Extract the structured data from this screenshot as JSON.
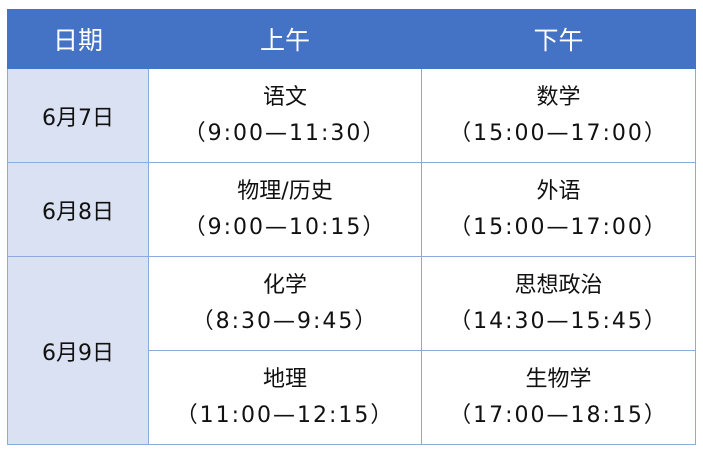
{
  "header": {
    "date": "日期",
    "morning": "上午",
    "afternoon": "下午"
  },
  "rows": [
    {
      "date": "6月7日",
      "morning": [
        {
          "subject": "语文",
          "time": "（9:00—11:30）"
        }
      ],
      "afternoon": [
        {
          "subject": "数学",
          "time": "（15:00—17:00）"
        }
      ]
    },
    {
      "date": "6月8日",
      "morning": [
        {
          "subject": "物理/历史",
          "time": "（9:00—10:15）"
        }
      ],
      "afternoon": [
        {
          "subject": "外语",
          "time": "（15:00—17:00）"
        }
      ]
    },
    {
      "date": "6月9日",
      "morning": [
        {
          "subject": "化学",
          "time": "（8:30—9:45）"
        },
        {
          "subject": "地理",
          "time": "（11:00—12:15）"
        }
      ],
      "afternoon": [
        {
          "subject": "思想政治",
          "time": "（14:30—15:45）"
        },
        {
          "subject": "生物学",
          "time": "（17:00—18:15）"
        }
      ]
    }
  ],
  "colors": {
    "header_bg": "#4472C4",
    "date_bg": "#D9E1F2",
    "border": "#8EA9DB"
  }
}
